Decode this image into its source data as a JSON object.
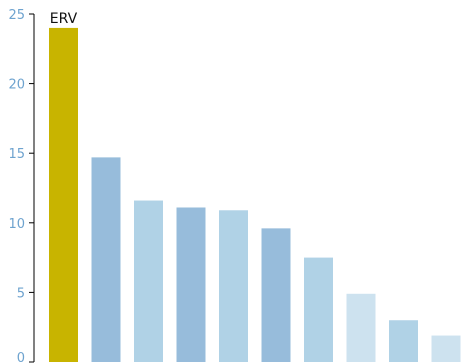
{
  "chart_data": {
    "type": "bar",
    "categories": [
      "ERV",
      "",
      "",
      "",
      "",
      "",
      "",
      "",
      "",
      ""
    ],
    "values": [
      24,
      14.7,
      11.6,
      11.1,
      10.9,
      9.6,
      7.5,
      4.9,
      3.0,
      1.9
    ],
    "bar_colors": [
      "#c8b400",
      "#97bcdb",
      "#b0d2e6",
      "#97bcdb",
      "#b0d2e6",
      "#97bcdb",
      "#b0d2e6",
      "#cde2ef",
      "#b0d2e6",
      "#cde2ef"
    ],
    "ylim": [
      0,
      25
    ],
    "y_ticks": [
      0,
      5,
      10,
      15,
      20,
      25
    ],
    "title": "",
    "xlabel": "",
    "ylabel": "",
    "tick_color": "#6ea3cf",
    "axis_color": "#000000",
    "grid": false,
    "legend": "none"
  }
}
